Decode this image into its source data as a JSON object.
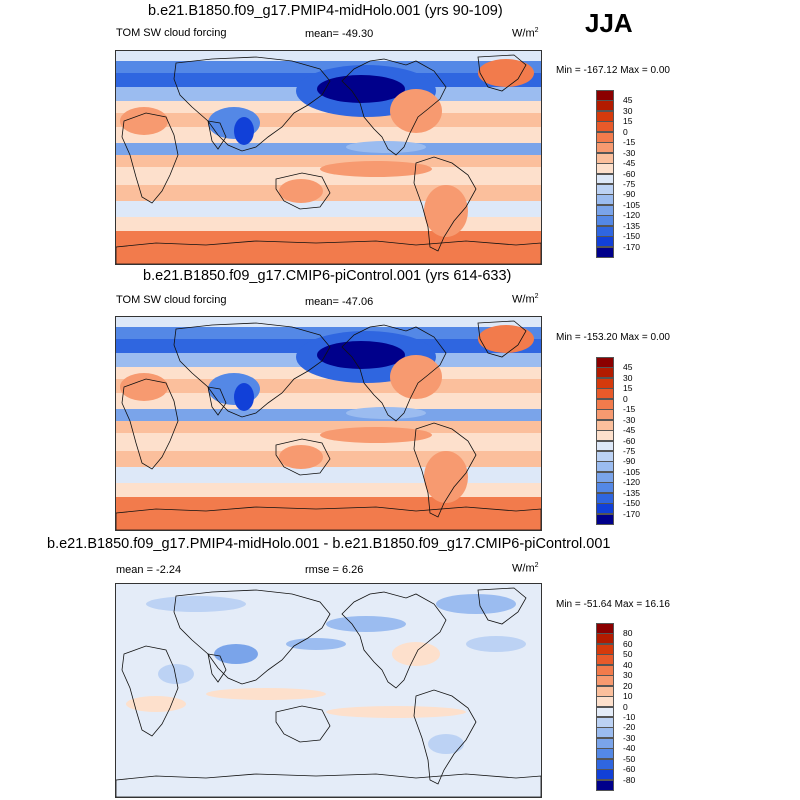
{
  "season": "JJA",
  "panels": [
    {
      "title": "b.e21.B1850.f09_g17.PMIP4-midHolo.001 (yrs 90-109)",
      "left_label": "TOM SW cloud forcing",
      "stat1": "mean= -49.30",
      "stat2": "",
      "units": "W/m",
      "units_sup": "2",
      "minmax": "Min = -167.12 Max =   0.00",
      "levels": [
        "45",
        "30",
        "15",
        "0",
        "-15",
        "-30",
        "-45",
        "-60",
        "-75",
        "-90",
        "-105",
        "-120",
        "-135",
        "-150",
        "-170"
      ],
      "colors": [
        "#8b0000",
        "#b31b00",
        "#d53a0c",
        "#e85a2a",
        "#f27b4c",
        "#f79a70",
        "#fbbf9c",
        "#fde0cc",
        "#dde8f8",
        "#bcd2f4",
        "#9bbcf0",
        "#7aa4ea",
        "#5488e6",
        "#2f66e0",
        "#1140d8",
        "#00008b"
      ]
    },
    {
      "title": "b.e21.B1850.f09_g17.CMIP6-piControl.001 (yrs 614-633)",
      "left_label": "TOM SW cloud forcing",
      "stat1": "mean= -47.06",
      "stat2": "",
      "units": "W/m",
      "units_sup": "2",
      "minmax": "Min = -153.20 Max =   0.00",
      "levels": [
        "45",
        "30",
        "15",
        "0",
        "-15",
        "-30",
        "-45",
        "-60",
        "-75",
        "-90",
        "-105",
        "-120",
        "-135",
        "-150",
        "-170"
      ],
      "colors": [
        "#8b0000",
        "#b31b00",
        "#d53a0c",
        "#e85a2a",
        "#f27b4c",
        "#f79a70",
        "#fbbf9c",
        "#fde0cc",
        "#dde8f8",
        "#bcd2f4",
        "#9bbcf0",
        "#7aa4ea",
        "#5488e6",
        "#2f66e0",
        "#1140d8",
        "#00008b"
      ]
    },
    {
      "title": "b.e21.B1850.f09_g17.PMIP4-midHolo.001 - b.e21.B1850.f09_g17.CMIP6-piControl.001",
      "left_label": "",
      "stat1": "mean =  -2.24",
      "stat2": "rmse =  6.26",
      "units": "W/m",
      "units_sup": "2",
      "minmax": "Min = -51.64 Max =  16.16",
      "levels": [
        "80",
        "60",
        "50",
        "40",
        "30",
        "20",
        "10",
        "0",
        "-10",
        "-20",
        "-30",
        "-40",
        "-50",
        "-60",
        "-80"
      ],
      "colors": [
        "#8b0000",
        "#b31b00",
        "#d53a0c",
        "#e85a2a",
        "#f27b4c",
        "#f79a70",
        "#fbbf9c",
        "#fde0cc",
        "#e4ecf8",
        "#bcd2f4",
        "#9bbcf0",
        "#7aa4ea",
        "#5488e6",
        "#2f66e0",
        "#1140d8",
        "#00008b"
      ]
    }
  ]
}
